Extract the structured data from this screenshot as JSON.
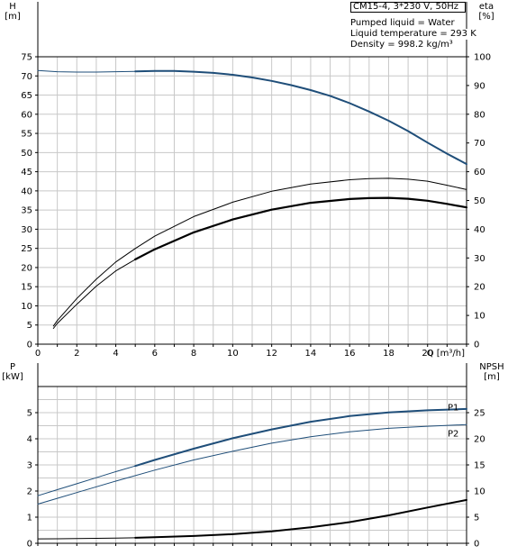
{
  "chart_data": [
    {
      "type": "line",
      "panel": "head-efficiency",
      "xlabel": "Q [m³/h]",
      "xlim": [
        0,
        22
      ],
      "x_ticks": [
        0,
        2,
        4,
        6,
        8,
        10,
        12,
        14,
        16,
        18,
        20
      ],
      "ylabel_left": "H\n[m]",
      "ylabel_left_top": "H",
      "ylabel_left_unit": "[m]",
      "ylim_left": [
        0,
        75
      ],
      "y_ticks_left": [
        0,
        5,
        10,
        15,
        20,
        25,
        30,
        35,
        40,
        45,
        50,
        55,
        60,
        65,
        70,
        75
      ],
      "ylabel_right_top": "eta",
      "ylabel_right_unit": "[%]",
      "ylim_right": [
        0,
        100
      ],
      "y_ticks_right": [
        0,
        10,
        20,
        30,
        40,
        50,
        60,
        70,
        80,
        90,
        100
      ],
      "grid": true,
      "series": [
        {
          "axis": "left",
          "color": "#1f4e79",
          "width": 2,
          "segments": [
            {
              "width": 1,
              "x": [
                0,
                1,
                2,
                3,
                4,
                5
              ],
              "y": [
                71.4,
                71.1,
                71.0,
                71.0,
                71.1,
                71.2
              ]
            },
            {
              "width": 2,
              "x": [
                5,
                6,
                7,
                8,
                9,
                10,
                11,
                12,
                13,
                14,
                15,
                16,
                17,
                18,
                19,
                20,
                21,
                22
              ],
              "y": [
                71.2,
                71.3,
                71.3,
                71.1,
                70.8,
                70.3,
                69.6,
                68.7,
                67.6,
                66.3,
                64.8,
                62.9,
                60.7,
                58.3,
                55.6,
                52.6,
                49.7,
                47.0
              ]
            }
          ]
        },
        {
          "axis": "right",
          "color": "#000000",
          "segments": [
            {
              "width": 1,
              "x": [
                0.8,
                1,
                2,
                3,
                4,
                5,
                6,
                8,
                10,
                12,
                14,
                16,
                17,
                18,
                19,
                20,
                21,
                22
              ],
              "y": [
                6.3,
                8.2,
                15.9,
                22.6,
                28.6,
                33.3,
                37.6,
                44.4,
                49.4,
                53.2,
                55.7,
                57.2,
                57.6,
                57.7,
                57.4,
                56.7,
                55.3,
                53.8
              ]
            }
          ]
        },
        {
          "axis": "right",
          "color": "#000000",
          "segments": [
            {
              "width": 1,
              "x": [
                0.8,
                1,
                2,
                3,
                4,
                5
              ],
              "y": [
                5.5,
                7.2,
                13.9,
                20.2,
                25.5,
                29.5
              ]
            },
            {
              "width": 2.2,
              "x": [
                5,
                6,
                8,
                10,
                12,
                14,
                16,
                17,
                18,
                19,
                20,
                21,
                22
              ],
              "y": [
                29.5,
                33.0,
                38.9,
                43.4,
                46.8,
                49.2,
                50.5,
                50.8,
                50.9,
                50.6,
                49.9,
                48.8,
                47.6
              ]
            }
          ]
        }
      ]
    },
    {
      "type": "line",
      "panel": "power-npsh",
      "xlim": [
        0,
        22
      ],
      "ylabel_left_top": "P",
      "ylabel_left_unit": "[kW]",
      "ylim_left": [
        0,
        6
      ],
      "y_ticks_left": [
        0,
        1,
        2,
        3,
        4,
        5
      ],
      "ylabel_right_top": "NPSH",
      "ylabel_right_unit": "[m]",
      "ylim_right": [
        0,
        30
      ],
      "y_ticks_right": [
        0,
        5,
        10,
        15,
        20,
        25
      ],
      "grid": true,
      "series": [
        {
          "name": "P1",
          "axis": "left",
          "color": "#1f4e79",
          "label_at": [
            21.6,
            5.2
          ],
          "segments": [
            {
              "width": 1,
              "x": [
                0,
                1,
                2,
                3,
                4,
                5
              ],
              "y": [
                1.82,
                2.05,
                2.28,
                2.51,
                2.74,
                2.96
              ]
            },
            {
              "width": 2,
              "x": [
                5,
                6,
                8,
                10,
                12,
                14,
                16,
                18,
                20,
                22
              ],
              "y": [
                2.96,
                3.19,
                3.62,
                4.02,
                4.36,
                4.65,
                4.87,
                5.01,
                5.09,
                5.14
              ]
            }
          ]
        },
        {
          "name": "P2",
          "axis": "left",
          "color": "#1f4e79",
          "label_at": [
            21.6,
            4.2
          ],
          "segments": [
            {
              "width": 1,
              "x": [
                0,
                1,
                2,
                4,
                6,
                8,
                10,
                12,
                14,
                16,
                18,
                20,
                22
              ],
              "y": [
                1.5,
                1.72,
                1.94,
                2.38,
                2.8,
                3.19,
                3.52,
                3.83,
                4.08,
                4.27,
                4.4,
                4.48,
                4.54
              ]
            }
          ]
        },
        {
          "axis": "right",
          "color": "#000000",
          "segments": [
            {
              "width": 1,
              "x": [
                0,
                1,
                2,
                3,
                4,
                5
              ],
              "y": [
                0.85,
                0.87,
                0.9,
                0.95,
                1.0,
                1.05
              ]
            },
            {
              "width": 2,
              "x": [
                5,
                6,
                8,
                10,
                12,
                14,
                16,
                18,
                20,
                22
              ],
              "y": [
                1.05,
                1.15,
                1.4,
                1.75,
                2.3,
                3.05,
                4.05,
                5.35,
                6.85,
                8.3
              ]
            }
          ]
        }
      ]
    }
  ],
  "info": {
    "title": "CM15-4, 3*230 V, 50Hz",
    "liquid": "Pumped liquid = Water",
    "temperature": "Liquid temperature = 293 K",
    "density": "Density = 998.2 kg/m³"
  }
}
